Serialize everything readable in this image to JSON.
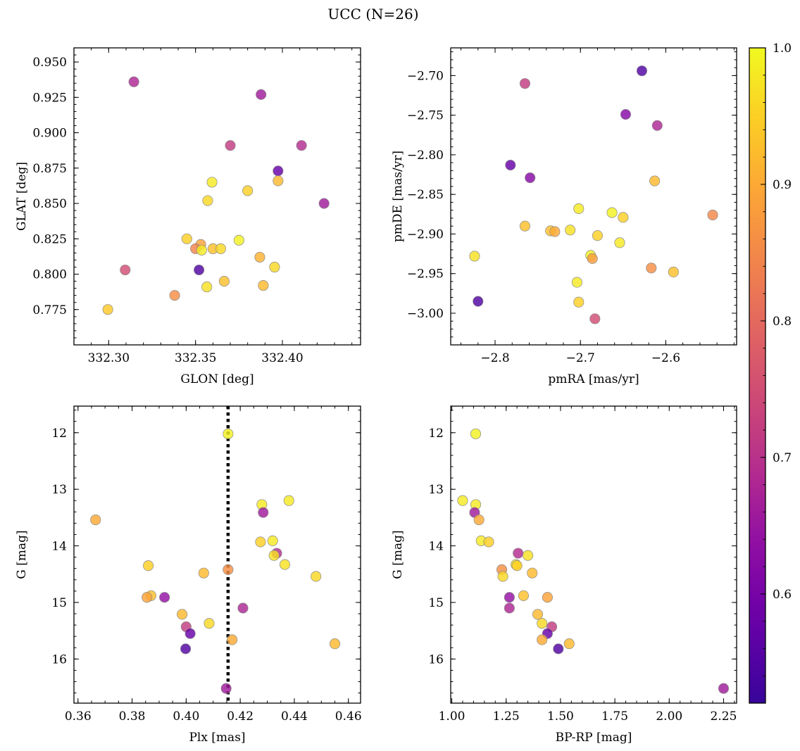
{
  "chart_data": {
    "type": "scatter",
    "title": "UCC (N=26)",
    "colorbar": {
      "range": [
        0.52,
        1.0
      ],
      "ticks": [
        0.6,
        0.7,
        0.8,
        0.9,
        1.0
      ],
      "tick_labels": [
        "0.6",
        "0.7",
        "0.8",
        "0.9",
        "1.0"
      ],
      "colormap": "plasma"
    },
    "panels": [
      {
        "id": "glon-glat",
        "xlabel": "GLON [deg]",
        "ylabel": "GLAT [deg]",
        "xlim": [
          332.28,
          332.445
        ],
        "ylim": [
          0.75,
          0.96
        ],
        "y_inverted": false,
        "xticks": [
          332.3,
          332.35,
          332.4
        ],
        "xtick_labels": [
          "332.30",
          "332.35",
          "332.40"
        ],
        "xminor": 0.01,
        "yticks": [
          0.775,
          0.8,
          0.825,
          0.85,
          0.875,
          0.9,
          0.925,
          0.95
        ],
        "ytick_labels": [
          "0.775",
          "0.800",
          "0.825",
          "0.850",
          "0.875",
          "0.900",
          "0.925",
          "0.950"
        ],
        "yminor": 0.005,
        "points": [
          {
            "x": 332.3145,
            "y": 0.936,
            "c": 0.68
          },
          {
            "x": 332.3877,
            "y": 0.927,
            "c": 0.66
          },
          {
            "x": 332.37,
            "y": 0.891,
            "c": 0.72
          },
          {
            "x": 332.411,
            "y": 0.891,
            "c": 0.69
          },
          {
            "x": 332.3975,
            "y": 0.873,
            "c": 0.58
          },
          {
            "x": 332.3975,
            "y": 0.866,
            "c": 0.92
          },
          {
            "x": 332.3595,
            "y": 0.865,
            "c": 0.98
          },
          {
            "x": 332.38,
            "y": 0.859,
            "c": 0.95
          },
          {
            "x": 332.357,
            "y": 0.852,
            "c": 0.96
          },
          {
            "x": 332.424,
            "y": 0.85,
            "c": 0.66
          },
          {
            "x": 332.345,
            "y": 0.825,
            "c": 0.95
          },
          {
            "x": 332.375,
            "y": 0.824,
            "c": 0.99
          },
          {
            "x": 332.353,
            "y": 0.821,
            "c": 0.89
          },
          {
            "x": 332.35,
            "y": 0.818,
            "c": 0.84
          },
          {
            "x": 332.36,
            "y": 0.818,
            "c": 0.93
          },
          {
            "x": 332.3645,
            "y": 0.818,
            "c": 0.96
          },
          {
            "x": 332.3535,
            "y": 0.817,
            "c": 0.98
          },
          {
            "x": 332.387,
            "y": 0.812,
            "c": 0.91
          },
          {
            "x": 332.3095,
            "y": 0.803,
            "c": 0.75
          },
          {
            "x": 332.352,
            "y": 0.803,
            "c": 0.55
          },
          {
            "x": 332.3955,
            "y": 0.805,
            "c": 0.96
          },
          {
            "x": 332.3665,
            "y": 0.795,
            "c": 0.93
          },
          {
            "x": 332.389,
            "y": 0.792,
            "c": 0.92
          },
          {
            "x": 332.3565,
            "y": 0.791,
            "c": 0.97
          },
          {
            "x": 332.338,
            "y": 0.785,
            "c": 0.86
          },
          {
            "x": 332.2995,
            "y": 0.775,
            "c": 0.94
          }
        ]
      },
      {
        "id": "pmra-pmde",
        "xlabel": "pmRA [mas/yr]",
        "ylabel": "pmDE [mas/yr]",
        "xlim": [
          -2.852,
          -2.517
        ],
        "ylim": [
          -3.04,
          -2.665
        ],
        "y_inverted": false,
        "xticks": [
          -2.8,
          -2.7,
          -2.6
        ],
        "xtick_labels": [
          "−2.8",
          "−2.7",
          "−2.6"
        ],
        "xminor": 0.02,
        "yticks": [
          -3.0,
          -2.95,
          -2.9,
          -2.85,
          -2.8,
          -2.75,
          -2.7
        ],
        "ytick_labels": [
          "−3.00",
          "−2.95",
          "−2.90",
          "−2.85",
          "−2.80",
          "−2.75",
          "−2.70"
        ],
        "yminor": 0.01,
        "points": [
          {
            "x": -2.628,
            "y": -2.694,
            "c": 0.55
          },
          {
            "x": -2.765,
            "y": -2.71,
            "c": 0.72
          },
          {
            "x": -2.647,
            "y": -2.749,
            "c": 0.62
          },
          {
            "x": -2.61,
            "y": -2.763,
            "c": 0.68
          },
          {
            "x": -2.782,
            "y": -2.813,
            "c": 0.58
          },
          {
            "x": -2.759,
            "y": -2.829,
            "c": 0.62
          },
          {
            "x": -2.613,
            "y": -2.833,
            "c": 0.92
          },
          {
            "x": -2.702,
            "y": -2.868,
            "c": 0.98
          },
          {
            "x": -2.663,
            "y": -2.873,
            "c": 0.99
          },
          {
            "x": -2.545,
            "y": -2.876,
            "c": 0.85
          },
          {
            "x": -2.65,
            "y": -2.879,
            "c": 0.95
          },
          {
            "x": -2.765,
            "y": -2.89,
            "c": 0.93
          },
          {
            "x": -2.735,
            "y": -2.896,
            "c": 0.93
          },
          {
            "x": -2.73,
            "y": -2.897,
            "c": 0.9
          },
          {
            "x": -2.712,
            "y": -2.895,
            "c": 0.97
          },
          {
            "x": -2.68,
            "y": -2.902,
            "c": 0.95
          },
          {
            "x": -2.654,
            "y": -2.911,
            "c": 0.98
          },
          {
            "x": -2.824,
            "y": -2.928,
            "c": 0.97
          },
          {
            "x": -2.688,
            "y": -2.927,
            "c": 0.99
          },
          {
            "x": -2.686,
            "y": -2.931,
            "c": 0.88
          },
          {
            "x": -2.617,
            "y": -2.943,
            "c": 0.86
          },
          {
            "x": -2.591,
            "y": -2.948,
            "c": 0.93
          },
          {
            "x": -2.704,
            "y": -2.961,
            "c": 0.98
          },
          {
            "x": -2.82,
            "y": -2.985,
            "c": 0.55
          },
          {
            "x": -2.702,
            "y": -2.986,
            "c": 0.95
          },
          {
            "x": -2.683,
            "y": -3.007,
            "c": 0.75
          }
        ]
      },
      {
        "id": "plx-g",
        "xlabel": "Plx [mas]",
        "ylabel": "G [mag]",
        "xlim": [
          0.3585,
          0.4645
        ],
        "ylim": [
          11.53,
          16.78
        ],
        "y_inverted": true,
        "xticks": [
          0.36,
          0.38,
          0.4,
          0.42,
          0.44,
          0.46
        ],
        "xtick_labels": [
          "0.36",
          "0.38",
          "0.40",
          "0.42",
          "0.44",
          "0.46"
        ],
        "xminor": 0.005,
        "yticks": [
          12,
          13,
          14,
          15,
          16
        ],
        "ytick_labels": [
          "12",
          "13",
          "14",
          "15",
          "16"
        ],
        "yminor": 0.2,
        "vline": {
          "x": 0.4155,
          "style": "dotted"
        },
        "points": [
          {
            "x": 0.4155,
            "y": 12.02,
            "c": 0.99
          },
          {
            "x": 0.438,
            "y": 13.2,
            "c": 0.98
          },
          {
            "x": 0.428,
            "y": 13.27,
            "c": 0.98
          },
          {
            "x": 0.4285,
            "y": 13.41,
            "c": 0.66
          },
          {
            "x": 0.3665,
            "y": 13.54,
            "c": 0.9
          },
          {
            "x": 0.4275,
            "y": 13.93,
            "c": 0.95
          },
          {
            "x": 0.432,
            "y": 13.91,
            "c": 0.98
          },
          {
            "x": 0.4335,
            "y": 14.13,
            "c": 0.69
          },
          {
            "x": 0.4325,
            "y": 14.17,
            "c": 0.97
          },
          {
            "x": 0.4365,
            "y": 14.33,
            "c": 0.97
          },
          {
            "x": 0.386,
            "y": 14.35,
            "c": 0.95
          },
          {
            "x": 0.4155,
            "y": 14.42,
            "c": 0.86
          },
          {
            "x": 0.4065,
            "y": 14.48,
            "c": 0.92
          },
          {
            "x": 0.448,
            "y": 14.54,
            "c": 0.96
          },
          {
            "x": 0.387,
            "y": 14.88,
            "c": 0.93
          },
          {
            "x": 0.3855,
            "y": 14.91,
            "c": 0.89
          },
          {
            "x": 0.392,
            "y": 14.91,
            "c": 0.64
          },
          {
            "x": 0.421,
            "y": 15.1,
            "c": 0.68
          },
          {
            "x": 0.3985,
            "y": 15.21,
            "c": 0.92
          },
          {
            "x": 0.4085,
            "y": 15.37,
            "c": 0.96
          },
          {
            "x": 0.4,
            "y": 15.43,
            "c": 0.72
          },
          {
            "x": 0.4015,
            "y": 15.55,
            "c": 0.58
          },
          {
            "x": 0.417,
            "y": 15.66,
            "c": 0.9
          },
          {
            "x": 0.455,
            "y": 15.73,
            "c": 0.92
          },
          {
            "x": 0.3998,
            "y": 15.82,
            "c": 0.55
          },
          {
            "x": 0.4148,
            "y": 16.52,
            "c": 0.66
          }
        ]
      },
      {
        "id": "bprp-g",
        "xlabel": "BP-RP [mag]",
        "ylabel": "G [mag]",
        "xlim": [
          0.995,
          2.31
        ],
        "ylim": [
          11.53,
          16.78
        ],
        "y_inverted": true,
        "xticks": [
          1.0,
          1.25,
          1.5,
          1.75,
          2.0,
          2.25
        ],
        "xtick_labels": [
          "1.00",
          "1.25",
          "1.50",
          "1.75",
          "2.00",
          "2.25"
        ],
        "xminor": 0.05,
        "yticks": [
          12,
          13,
          14,
          15,
          16
        ],
        "ytick_labels": [
          "12",
          "13",
          "14",
          "15",
          "16"
        ],
        "yminor": 0.2,
        "points": [
          {
            "x": 1.11,
            "y": 12.02,
            "c": 0.99
          },
          {
            "x": 1.05,
            "y": 13.2,
            "c": 0.98
          },
          {
            "x": 1.11,
            "y": 13.27,
            "c": 0.98
          },
          {
            "x": 1.105,
            "y": 13.41,
            "c": 0.66
          },
          {
            "x": 1.125,
            "y": 13.54,
            "c": 0.9
          },
          {
            "x": 1.135,
            "y": 13.91,
            "c": 0.98
          },
          {
            "x": 1.17,
            "y": 13.93,
            "c": 0.95
          },
          {
            "x": 1.305,
            "y": 14.13,
            "c": 0.69
          },
          {
            "x": 1.35,
            "y": 14.17,
            "c": 0.97
          },
          {
            "x": 1.295,
            "y": 14.33,
            "c": 0.97
          },
          {
            "x": 1.3,
            "y": 14.35,
            "c": 0.95
          },
          {
            "x": 1.23,
            "y": 14.42,
            "c": 0.86
          },
          {
            "x": 1.37,
            "y": 14.48,
            "c": 0.92
          },
          {
            "x": 1.235,
            "y": 14.54,
            "c": 0.96
          },
          {
            "x": 1.33,
            "y": 14.88,
            "c": 0.93
          },
          {
            "x": 1.44,
            "y": 14.91,
            "c": 0.89
          },
          {
            "x": 1.265,
            "y": 14.91,
            "c": 0.64
          },
          {
            "x": 1.265,
            "y": 15.1,
            "c": 0.68
          },
          {
            "x": 1.395,
            "y": 15.21,
            "c": 0.92
          },
          {
            "x": 1.415,
            "y": 15.37,
            "c": 0.96
          },
          {
            "x": 1.46,
            "y": 15.43,
            "c": 0.72
          },
          {
            "x": 1.44,
            "y": 15.55,
            "c": 0.58
          },
          {
            "x": 1.415,
            "y": 15.66,
            "c": 0.9
          },
          {
            "x": 1.54,
            "y": 15.73,
            "c": 0.92
          },
          {
            "x": 1.49,
            "y": 15.82,
            "c": 0.55
          },
          {
            "x": 2.25,
            "y": 16.52,
            "c": 0.66
          }
        ]
      }
    ]
  }
}
